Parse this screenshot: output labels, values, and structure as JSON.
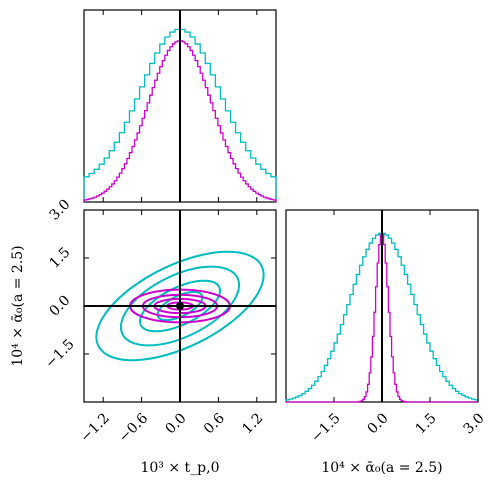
{
  "colors": {
    "series_a": "#00bcbc",
    "series_b": "#cc00cc",
    "marker": "#000000",
    "frame": "#000000",
    "background": "#ffffff"
  },
  "chart_data": [
    {
      "type": "histogram",
      "panel": "top-left",
      "xlim": [
        -1.5,
        1.5
      ],
      "x_ticks": [
        -1.2,
        -0.6,
        0.0,
        0.6,
        1.2
      ],
      "tick_labels_shown": false,
      "marker_x": 0.0,
      "series": [
        {
          "color_key": "series_a",
          "dist": "gaussian",
          "center": 0.0,
          "sigma": 0.62,
          "bins": 38
        },
        {
          "color_key": "series_b",
          "dist": "gaussian",
          "center": 0.0,
          "sigma": 0.5,
          "bins": 76
        }
      ]
    },
    {
      "type": "contour",
      "panel": "bottom-left",
      "xlim": [
        -1.5,
        1.5
      ],
      "ylim": [
        -3.0,
        3.0
      ],
      "x_ticks": [
        "-1.2",
        "-0.6",
        "0.0",
        "0.6",
        "1.2"
      ],
      "y_ticks": [
        "-1.5",
        "0.0",
        "1.5",
        "3.0"
      ],
      "x_tick_values": [
        -1.2,
        -0.6,
        0.0,
        0.6,
        1.2
      ],
      "y_tick_values": [
        -1.5,
        0.0,
        1.5,
        3.0
      ],
      "xlabel": "10³ × t_p,0",
      "ylabel": "10⁴ × ᾱ₀(a = 2.5)",
      "marker_point": [
        0.0,
        0.0
      ],
      "series": [
        {
          "color_key": "series_a",
          "ellipses": [
            {
              "center": [
                0.0,
                0.0
              ],
              "semi_major": 1.42,
              "semi_minor": 0.4,
              "angle_deg": -26
            },
            {
              "center": [
                0.0,
                0.0
              ],
              "semi_major": 1.0,
              "semi_minor": 0.3,
              "angle_deg": -26
            },
            {
              "center": [
                0.0,
                0.0
              ],
              "semi_major": 0.68,
              "semi_minor": 0.18,
              "angle_deg": -26
            },
            {
              "center": [
                0.0,
                0.0
              ],
              "semi_major": 0.38,
              "semi_minor": 0.1,
              "angle_deg": -26
            }
          ]
        },
        {
          "color_key": "series_b",
          "ellipses": [
            {
              "center": [
                0.0,
                0.0
              ],
              "semi_major": 0.78,
              "semi_minor": 0.16,
              "angle_deg": 0
            },
            {
              "center": [
                0.0,
                0.0
              ],
              "semi_major": 0.58,
              "semi_minor": 0.11,
              "angle_deg": 0
            },
            {
              "center": [
                0.0,
                0.0
              ],
              "semi_major": 0.4,
              "semi_minor": 0.07,
              "angle_deg": 0
            },
            {
              "center": [
                0.0,
                0.0
              ],
              "semi_major": 0.2,
              "semi_minor": 0.035,
              "angle_deg": 0
            }
          ]
        }
      ]
    },
    {
      "type": "histogram",
      "panel": "bottom-right",
      "xlim": [
        -3.0,
        3.0
      ],
      "x_ticks": [
        "-1.5",
        "0.0",
        "1.5",
        "3.0"
      ],
      "x_tick_values": [
        -1.5,
        0.0,
        1.5,
        3.0
      ],
      "xlabel": "10⁴ × ᾱ₀(a = 2.5)",
      "marker_x": 0.0,
      "series": [
        {
          "color_key": "series_a",
          "dist": "gaussian",
          "center": 0.0,
          "sigma": 1.0,
          "bins": 60
        },
        {
          "color_key": "series_b",
          "dist": "gaussian",
          "center": 0.0,
          "sigma": 0.2,
          "bins": 120
        }
      ]
    }
  ]
}
